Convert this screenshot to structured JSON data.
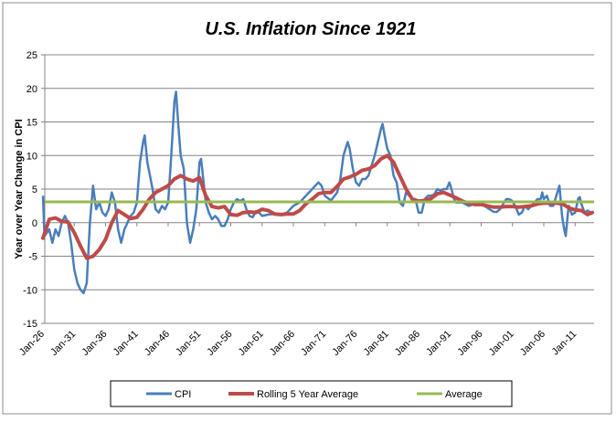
{
  "chart_data": {
    "type": "line",
    "title": "U.S. Inflation Since 1921",
    "xlabel": "",
    "ylabel": "Year over Year Change in CPI",
    "ylim": [
      -15,
      25
    ],
    "yticks": [
      25,
      20,
      15,
      10,
      5,
      0,
      -5,
      -10,
      -15
    ],
    "xticks": [
      "Jan-26",
      "Jan-31",
      "Jan-36",
      "Jan-41",
      "Jan-46",
      "Jan-51",
      "Jan-56",
      "Jan-61",
      "Jan-66",
      "Jan-71",
      "Jan-76",
      "Jan-81",
      "Jan-86",
      "Jan-91",
      "Jan-96",
      "Jan-01",
      "Jan-06",
      "Jan-11"
    ],
    "grid": "horizontal",
    "legend_position": "bottom",
    "colors": {
      "CPI": "#4a7ebb",
      "Rolling 5 Year Average": "#be4b48",
      "Average": "#98b954"
    },
    "series": [
      {
        "name": "CPI",
        "points": [
          [
            "1926-01",
            4
          ],
          [
            "1926-04",
            -2
          ],
          [
            "1927-01",
            -1
          ],
          [
            "1927-07",
            -3
          ],
          [
            "1928-01",
            -1
          ],
          [
            "1928-07",
            -2
          ],
          [
            "1929-01",
            0
          ],
          [
            "1929-07",
            1
          ],
          [
            "1930-01",
            0
          ],
          [
            "1930-07",
            -3
          ],
          [
            "1931-01",
            -7
          ],
          [
            "1931-07",
            -9
          ],
          [
            "1932-01",
            -10
          ],
          [
            "1932-07",
            -10.5
          ],
          [
            "1933-01",
            -9
          ],
          [
            "1933-07",
            0
          ],
          [
            "1934-01",
            5.5
          ],
          [
            "1934-07",
            2
          ],
          [
            "1935-01",
            3
          ],
          [
            "1935-07",
            1.5
          ],
          [
            "1936-01",
            1
          ],
          [
            "1936-07",
            2
          ],
          [
            "1937-01",
            4.5
          ],
          [
            "1937-07",
            3
          ],
          [
            "1938-01",
            -1
          ],
          [
            "1938-07",
            -3
          ],
          [
            "1939-01",
            -1
          ],
          [
            "1939-07",
            0
          ],
          [
            "1940-01",
            1
          ],
          [
            "1940-07",
            1.5
          ],
          [
            "1941-01",
            3
          ],
          [
            "1941-07",
            9
          ],
          [
            "1942-01",
            12
          ],
          [
            "1942-04",
            13
          ],
          [
            "1942-09",
            9
          ],
          [
            "1943-01",
            7.5
          ],
          [
            "1943-07",
            5
          ],
          [
            "1944-01",
            2
          ],
          [
            "1944-07",
            1.5
          ],
          [
            "1945-01",
            2.5
          ],
          [
            "1945-07",
            2
          ],
          [
            "1946-01",
            3
          ],
          [
            "1946-07",
            10
          ],
          [
            "1947-01",
            18
          ],
          [
            "1947-04",
            19.5
          ],
          [
            "1947-09",
            14
          ],
          [
            "1948-01",
            10
          ],
          [
            "1948-07",
            8
          ],
          [
            "1949-01",
            0
          ],
          [
            "1949-07",
            -3
          ],
          [
            "1950-01",
            -1
          ],
          [
            "1950-07",
            2
          ],
          [
            "1951-01",
            9
          ],
          [
            "1951-04",
            9.5
          ],
          [
            "1951-09",
            6
          ],
          [
            "1952-01",
            3
          ],
          [
            "1952-07",
            1.5
          ],
          [
            "1953-01",
            0.5
          ],
          [
            "1953-07",
            1
          ],
          [
            "1954-01",
            0.5
          ],
          [
            "1954-07",
            -0.5
          ],
          [
            "1955-01",
            -0.5
          ],
          [
            "1955-07",
            0.5
          ],
          [
            "1956-01",
            2
          ],
          [
            "1956-07",
            3
          ],
          [
            "1957-01",
            3.5
          ],
          [
            "1957-07",
            3.2
          ],
          [
            "1958-01",
            3.5
          ],
          [
            "1958-07",
            2
          ],
          [
            "1959-01",
            1
          ],
          [
            "1959-07",
            0.8
          ],
          [
            "1960-01",
            1.7
          ],
          [
            "1960-07",
            1.5
          ],
          [
            "1961-01",
            1
          ],
          [
            "1962-01",
            1.2
          ],
          [
            "1963-01",
            1.3
          ],
          [
            "1964-01",
            1.2
          ],
          [
            "1965-01",
            1.5
          ],
          [
            "1966-01",
            2.5
          ],
          [
            "1967-01",
            3
          ],
          [
            "1968-01",
            4
          ],
          [
            "1969-01",
            5
          ],
          [
            "1970-01",
            6
          ],
          [
            "1970-07",
            5.5
          ],
          [
            "1971-01",
            4
          ],
          [
            "1972-01",
            3.3
          ],
          [
            "1973-01",
            4.5
          ],
          [
            "1973-07",
            6.5
          ],
          [
            "1974-01",
            10
          ],
          [
            "1974-09",
            12
          ],
          [
            "1975-01",
            11
          ],
          [
            "1975-07",
            8
          ],
          [
            "1976-01",
            6
          ],
          [
            "1976-07",
            5.5
          ],
          [
            "1977-01",
            6.5
          ],
          [
            "1977-07",
            6.5
          ],
          [
            "1978-01",
            7
          ],
          [
            "1979-01",
            10
          ],
          [
            "1980-01",
            14
          ],
          [
            "1980-04",
            14.7
          ],
          [
            "1980-09",
            12.5
          ],
          [
            "1981-01",
            11
          ],
          [
            "1981-07",
            10
          ],
          [
            "1982-01",
            7
          ],
          [
            "1982-07",
            6
          ],
          [
            "1983-01",
            3
          ],
          [
            "1983-07",
            2.5
          ],
          [
            "1984-01",
            4.5
          ],
          [
            "1984-07",
            4
          ],
          [
            "1985-01",
            3.5
          ],
          [
            "1985-07",
            3.5
          ],
          [
            "1986-01",
            1.5
          ],
          [
            "1986-07",
            1.5
          ],
          [
            "1987-01",
            3.5
          ],
          [
            "1987-07",
            4
          ],
          [
            "1988-01",
            4
          ],
          [
            "1988-07",
            4.2
          ],
          [
            "1989-01",
            5
          ],
          [
            "1989-07",
            4.8
          ],
          [
            "1990-01",
            5
          ],
          [
            "1990-07",
            5
          ],
          [
            "1990-12",
            6
          ],
          [
            "1991-04",
            5
          ],
          [
            "1991-09",
            3.5
          ],
          [
            "1992-01",
            3
          ],
          [
            "1992-07",
            3
          ],
          [
            "1993-01",
            3
          ],
          [
            "1994-01",
            2.5
          ],
          [
            "1995-01",
            2.8
          ],
          [
            "1996-01",
            2.8
          ],
          [
            "1997-01",
            2.2
          ],
          [
            "1998-01",
            1.6
          ],
          [
            "1998-07",
            1.6
          ],
          [
            "1999-01",
            2
          ],
          [
            "2000-01",
            3.5
          ],
          [
            "2000-07",
            3.5
          ],
          [
            "2001-01",
            3.2
          ],
          [
            "2001-09",
            2
          ],
          [
            "2002-01",
            1.2
          ],
          [
            "2002-07",
            1.5
          ],
          [
            "2003-01",
            2.5
          ],
          [
            "2003-07",
            2
          ],
          [
            "2004-01",
            2.5
          ],
          [
            "2004-07",
            3
          ],
          [
            "2005-01",
            3.5
          ],
          [
            "2005-07",
            3.5
          ],
          [
            "2005-10",
            4.5
          ],
          [
            "2006-01",
            3.5
          ],
          [
            "2006-07",
            4
          ],
          [
            "2007-01",
            2.5
          ],
          [
            "2007-07",
            2.5
          ],
          [
            "2008-01",
            4
          ],
          [
            "2008-07",
            5.5
          ],
          [
            "2008-12",
            1
          ],
          [
            "2009-04",
            -1
          ],
          [
            "2009-07",
            -2
          ],
          [
            "2009-12",
            2
          ],
          [
            "2010-01",
            2.5
          ],
          [
            "2010-07",
            1.2
          ],
          [
            "2011-01",
            1.5
          ],
          [
            "2011-07",
            3.6
          ],
          [
            "2011-10",
            3.8
          ],
          [
            "2012-01",
            2.8
          ],
          [
            "2012-07",
            1.5
          ],
          [
            "2013-01",
            1.8
          ],
          [
            "2013-07",
            1.5
          ],
          [
            "2013-10",
            1.2
          ]
        ]
      },
      {
        "name": "Rolling 5 Year Average",
        "points": [
          [
            "1926-01",
            -2.3
          ],
          [
            "1927-01",
            0.5
          ],
          [
            "1928-01",
            0.7
          ],
          [
            "1929-01",
            0.2
          ],
          [
            "1930-01",
            0.1
          ],
          [
            "1931-01",
            -1.5
          ],
          [
            "1932-01",
            -3.5
          ],
          [
            "1933-01",
            -5.3
          ],
          [
            "1934-01",
            -5
          ],
          [
            "1935-01",
            -4
          ],
          [
            "1936-01",
            -2.5
          ],
          [
            "1937-01",
            0
          ],
          [
            "1938-01",
            1.8
          ],
          [
            "1939-01",
            1.2
          ],
          [
            "1940-01",
            0.6
          ],
          [
            "1941-01",
            0.8
          ],
          [
            "1942-01",
            2
          ],
          [
            "1943-01",
            3.5
          ],
          [
            "1944-01",
            4.5
          ],
          [
            "1945-01",
            5
          ],
          [
            "1946-01",
            5.5
          ],
          [
            "1947-01",
            6.5
          ],
          [
            "1948-01",
            7
          ],
          [
            "1949-01",
            6.5
          ],
          [
            "1950-01",
            6.2
          ],
          [
            "1951-01",
            6.7
          ],
          [
            "1952-01",
            4
          ],
          [
            "1953-01",
            2.4
          ],
          [
            "1954-01",
            2.2
          ],
          [
            "1955-01",
            2.4
          ],
          [
            "1956-01",
            1.2
          ],
          [
            "1957-01",
            1.1
          ],
          [
            "1958-01",
            1.5
          ],
          [
            "1959-01",
            1.6
          ],
          [
            "1960-01",
            1.5
          ],
          [
            "1961-01",
            2
          ],
          [
            "1962-01",
            1.8
          ],
          [
            "1963-01",
            1.3
          ],
          [
            "1964-01",
            1.2
          ],
          [
            "1965-01",
            1.3
          ],
          [
            "1966-01",
            1.3
          ],
          [
            "1967-01",
            1.8
          ],
          [
            "1968-01",
            2.8
          ],
          [
            "1969-01",
            3.5
          ],
          [
            "1970-01",
            4.3
          ],
          [
            "1971-01",
            4.5
          ],
          [
            "1972-01",
            4.5
          ],
          [
            "1973-01",
            5.4
          ],
          [
            "1974-01",
            6.5
          ],
          [
            "1975-01",
            6.8
          ],
          [
            "1976-01",
            7.2
          ],
          [
            "1977-01",
            7.8
          ],
          [
            "1978-01",
            8
          ],
          [
            "1979-01",
            8.5
          ],
          [
            "1980-01",
            9.5
          ],
          [
            "1981-01",
            10
          ],
          [
            "1982-01",
            9
          ],
          [
            "1983-01",
            7
          ],
          [
            "1984-01",
            5
          ],
          [
            "1985-01",
            3.5
          ],
          [
            "1986-01",
            3.2
          ],
          [
            "1987-01",
            3.3
          ],
          [
            "1988-01",
            3.6
          ],
          [
            "1989-01",
            4.3
          ],
          [
            "1990-01",
            4.5
          ],
          [
            "1991-01",
            4.1
          ],
          [
            "1992-01",
            3.7
          ],
          [
            "1993-01",
            3.2
          ],
          [
            "1994-01",
            2.9
          ],
          [
            "1995-01",
            2.7
          ],
          [
            "1996-01",
            2.7
          ],
          [
            "1997-01",
            2.5
          ],
          [
            "1998-01",
            2.3
          ],
          [
            "1999-01",
            2.3
          ],
          [
            "2000-01",
            2.4
          ],
          [
            "2001-01",
            2.4
          ],
          [
            "2002-01",
            2.3
          ],
          [
            "2003-01",
            2.4
          ],
          [
            "2004-01",
            2.5
          ],
          [
            "2005-01",
            2.8
          ],
          [
            "2006-01",
            2.9
          ],
          [
            "2007-01",
            2.9
          ],
          [
            "2008-01",
            2.9
          ],
          [
            "2009-01",
            2.8
          ],
          [
            "2010-01",
            2.2
          ],
          [
            "2011-01",
            1.9
          ],
          [
            "2012-01",
            1.8
          ],
          [
            "2013-01",
            1.2
          ],
          [
            "2013-10",
            1.5
          ]
        ]
      },
      {
        "name": "Average",
        "value": 3.1
      }
    ]
  }
}
